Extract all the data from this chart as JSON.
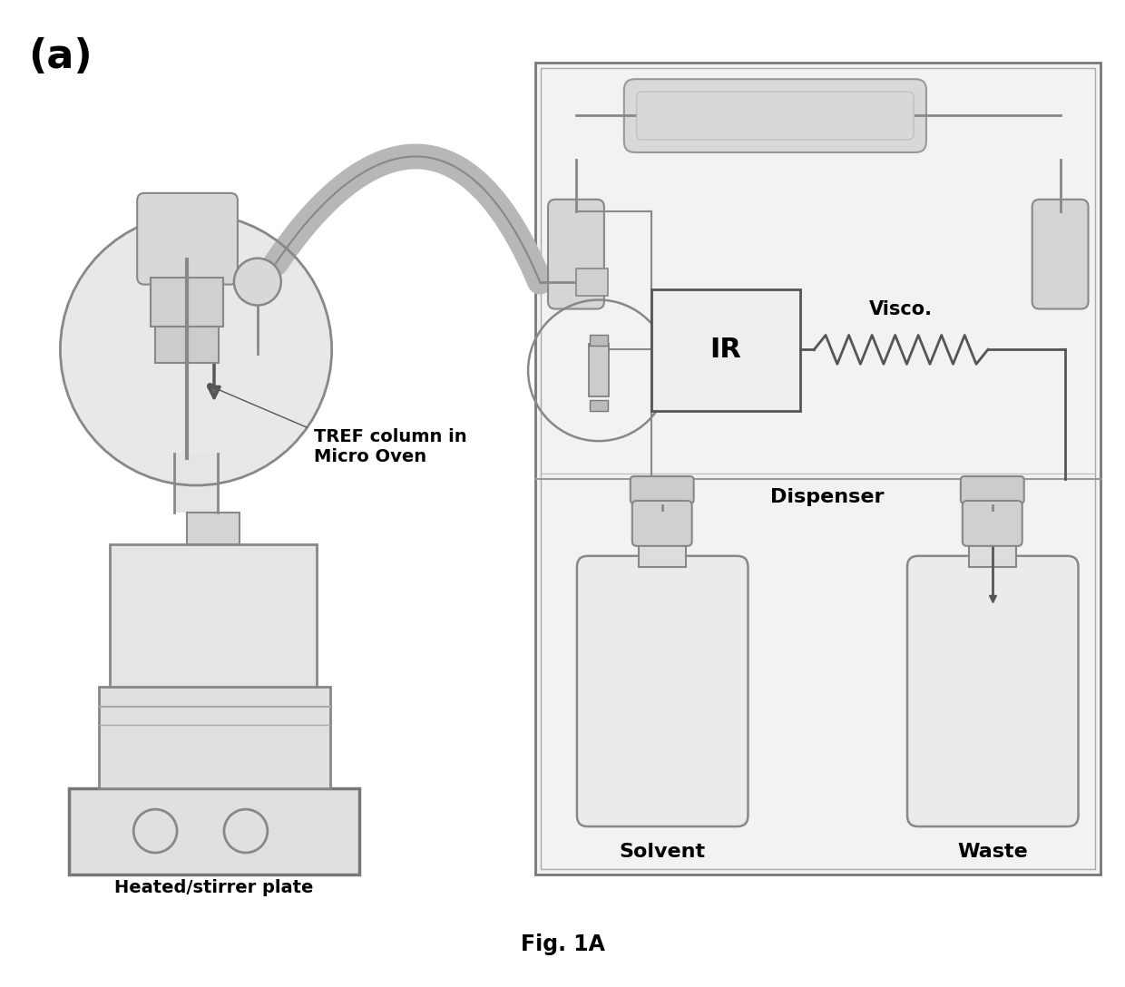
{
  "title_label": "(a)",
  "fig_label": "Fig. 1A",
  "label_tref": "TREF column in\nMicro Oven",
  "label_heated": "Heated/stirrer plate",
  "label_ir": "IR",
  "label_visco": "Visco.",
  "label_dispenser": "Dispenser",
  "label_solvent": "Solvent",
  "label_waste": "Waste",
  "bg_color": "#ffffff",
  "ec_main": "#888888",
  "ec_dark": "#555555",
  "fc_light": "#e8e8e8",
  "fc_mid": "#d0d0d0",
  "fc_dark": "#bbbbbb"
}
